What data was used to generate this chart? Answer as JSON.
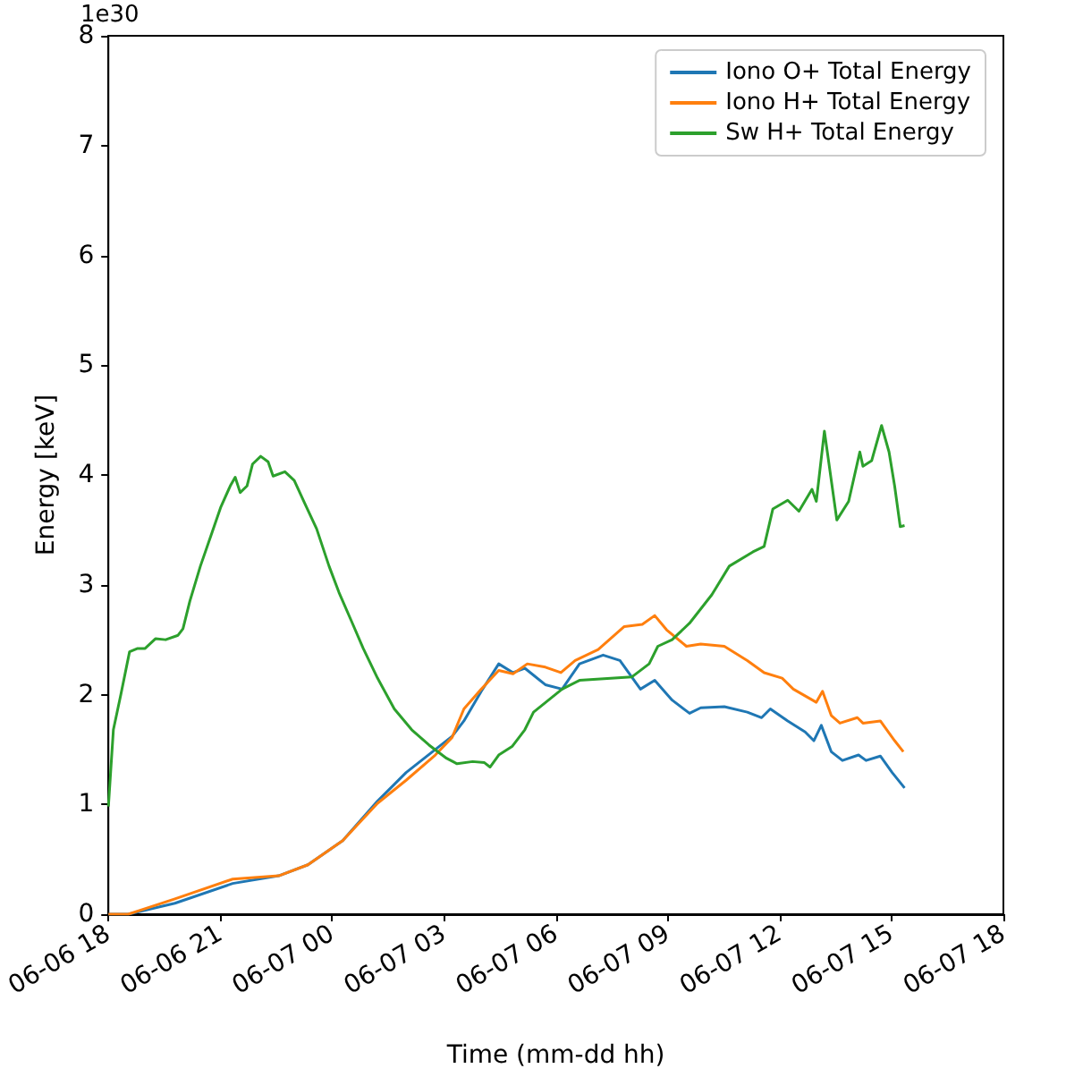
{
  "chart_data": {
    "type": "line",
    "xlabel": "Time (mm-dd hh)",
    "ylabel": "Energy [keV]",
    "annotations": [
      "1e30"
    ],
    "xlim": [
      "--06-06T18:00",
      "--06-07T18:00"
    ],
    "xticks": [
      {
        "value": "--06-06T18:00",
        "label": "06-06 18"
      },
      {
        "value": "--06-06T21:00",
        "label": "06-06 21"
      },
      {
        "value": "--06-07T00:00",
        "label": "06-07 00"
      },
      {
        "value": "--06-07T03:00",
        "label": "06-07 03"
      },
      {
        "value": "--06-07T06:00",
        "label": "06-07 06"
      },
      {
        "value": "--06-07T09:00",
        "label": "06-07 09"
      },
      {
        "value": "--06-07T12:00",
        "label": "06-07 12"
      },
      {
        "value": "--06-07T15:00",
        "label": "06-07 15"
      },
      {
        "value": "--06-07T18:00",
        "label": "06-07 18"
      }
    ],
    "ylim": [
      0,
      8
    ],
    "yticks": [
      0,
      1,
      2,
      3,
      4,
      5,
      6,
      7,
      8
    ],
    "grid": false,
    "legend": "top right",
    "marker": "none",
    "line_style": "solid",
    "series": [
      {
        "name": "Iono O+ Total Energy",
        "color": "#1f77b4",
        "x": [
          "--06-06T18:00",
          "--06-06T18:32",
          "--06-06T19:47",
          "--06-06T21:20",
          "--06-06T22:34",
          "--06-06T23:21",
          "--06-07T00:17",
          "--06-07T01:13",
          "--06-07T01:59",
          "--06-07T02:46",
          "--06-07T03:13",
          "--06-07T03:32",
          "--06-07T04:00",
          "--06-07T04:28",
          "--06-07T04:51",
          "--06-07T05:10",
          "--06-07T05:43",
          "--06-07T06:10",
          "--06-07T06:38",
          "--06-07T07:16",
          "--06-07T07:43",
          "--06-07T08:16",
          "--06-07T08:39",
          "--06-07T09:07",
          "--06-07T09:35",
          "--06-07T09:53",
          "--06-07T10:31",
          "--06-07T11:08",
          "--06-07T11:31",
          "--06-07T11:45",
          "--06-07T12:13",
          "--06-07T12:41",
          "--06-07T12:55",
          "--06-07T13:07",
          "--06-07T13:23",
          "--06-07T13:41",
          "--06-07T14:07",
          "--06-07T14:19",
          "--06-07T14:42",
          "--06-07T15:01",
          "--06-07T15:21"
        ],
        "values": [
          0,
          0.0,
          0.1,
          0.28,
          0.35,
          0.45,
          0.67,
          1.03,
          1.29,
          1.5,
          1.62,
          1.76,
          2.03,
          2.28,
          2.2,
          2.24,
          2.09,
          2.05,
          2.28,
          2.36,
          2.31,
          2.05,
          2.13,
          1.95,
          1.83,
          1.88,
          1.89,
          1.84,
          1.79,
          1.87,
          1.76,
          1.66,
          1.58,
          1.72,
          1.48,
          1.4,
          1.45,
          1.4,
          1.44,
          1.29,
          1.15
        ]
      },
      {
        "name": "Iono H+ Total Energy",
        "color": "#ff7f0e",
        "x": [
          "--06-06T18:00",
          "--06-06T18:32",
          "--06-06T19:47",
          "--06-06T21:20",
          "--06-06T22:34",
          "--06-06T23:21",
          "--06-07T00:17",
          "--06-07T01:13",
          "--06-07T01:59",
          "--06-07T02:46",
          "--06-07T03:13",
          "--06-07T03:32",
          "--06-07T04:00",
          "--06-07T04:28",
          "--06-07T04:51",
          "--06-07T05:14",
          "--06-07T05:43",
          "--06-07T06:08",
          "--06-07T06:31",
          "--06-07T07:08",
          "--06-07T07:50",
          "--06-07T08:19",
          "--06-07T08:39",
          "--06-07T08:58",
          "--06-07T09:30",
          "--06-07T09:53",
          "--06-07T10:31",
          "--06-07T11:08",
          "--06-07T11:35",
          "--06-07T12:04",
          "--06-07T12:22",
          "--06-07T12:59",
          "--06-07T13:09",
          "--06-07T13:23",
          "--06-07T13:37",
          "--06-07T14:05",
          "--06-07T14:14",
          "--06-07T14:42",
          "--06-07T15:05",
          "--06-07T15:19"
        ],
        "values": [
          0,
          0.0,
          0.14,
          0.32,
          0.35,
          0.45,
          0.67,
          1.01,
          1.22,
          1.45,
          1.61,
          1.87,
          2.05,
          2.22,
          2.19,
          2.28,
          2.25,
          2.2,
          2.31,
          2.41,
          2.62,
          2.64,
          2.72,
          2.59,
          2.44,
          2.46,
          2.44,
          2.31,
          2.2,
          2.15,
          2.05,
          1.93,
          2.03,
          1.81,
          1.74,
          1.79,
          1.74,
          1.76,
          1.58,
          1.48
        ]
      },
      {
        "name": "Sw H+ Total Energy",
        "color": "#2ca02c",
        "x": [
          "--06-06T18:00",
          "--06-06T18:08",
          "--06-06T18:20",
          "--06-06T18:34",
          "--06-06T18:47",
          "--06-06T18:59",
          "--06-06T19:16",
          "--06-06T19:32",
          "--06-06T19:52",
          "--06-06T20:00",
          "--06-06T20:11",
          "--06-06T20:28",
          "--06-06T20:47",
          "--06-06T21:01",
          "--06-06T21:16",
          "--06-06T21:24",
          "--06-06T21:32",
          "--06-06T21:43",
          "--06-06T21:52",
          "--06-06T22:05",
          "--06-06T22:17",
          "--06-06T22:25",
          "--06-06T22:44",
          "--06-06T22:59",
          "--06-06T23:16",
          "--06-06T23:35",
          "--06-06T23:55",
          "--06-07T00:11",
          "--06-07T00:31",
          "--06-07T00:50",
          "--06-07T01:13",
          "--06-07T01:40",
          "--06-07T02:08",
          "--06-07T02:36",
          "--06-07T03:04",
          "--06-07T03:21",
          "--06-07T03:46",
          "--06-07T04:05",
          "--06-07T04:14",
          "--06-07T04:28",
          "--06-07T04:50",
          "--06-07T05:10",
          "--06-07T05:24",
          "--06-07T06:10",
          "--06-07T06:38",
          "--06-07T07:34",
          "--06-07T08:02",
          "--06-07T08:30",
          "--06-07T08:44",
          "--06-07T09:07",
          "--06-07T09:35",
          "--06-07T10:11",
          "--06-07T10:39",
          "--06-07T11:17",
          "--06-07T11:35",
          "--06-07T11:49",
          "--06-07T12:13",
          "--06-07T12:31",
          "--06-07T12:52",
          "--06-07T12:59",
          "--06-07T13:12",
          "--06-07T13:32",
          "--06-07T13:51",
          "--06-07T14:09",
          "--06-07T14:14",
          "--06-07T14:28",
          "--06-07T14:44",
          "--06-07T14:56",
          "--06-07T15:05",
          "--06-07T15:14",
          "--06-07T15:21"
        ],
        "values": [
          0.98,
          1.68,
          2.0,
          2.39,
          2.42,
          2.42,
          2.51,
          2.5,
          2.54,
          2.6,
          2.85,
          3.17,
          3.48,
          3.71,
          3.9,
          3.98,
          3.84,
          3.9,
          4.1,
          4.17,
          4.12,
          3.99,
          4.03,
          3.95,
          3.74,
          3.51,
          3.17,
          2.93,
          2.67,
          2.42,
          2.15,
          1.87,
          1.68,
          1.54,
          1.42,
          1.37,
          1.39,
          1.38,
          1.34,
          1.45,
          1.53,
          1.68,
          1.84,
          2.05,
          2.13,
          2.15,
          2.16,
          2.28,
          2.44,
          2.5,
          2.65,
          2.91,
          3.17,
          3.3,
          3.35,
          3.69,
          3.77,
          3.67,
          3.87,
          3.76,
          4.4,
          3.59,
          3.76,
          4.21,
          4.08,
          4.13,
          4.45,
          4.21,
          3.9,
          3.53,
          3.54
        ]
      }
    ]
  }
}
